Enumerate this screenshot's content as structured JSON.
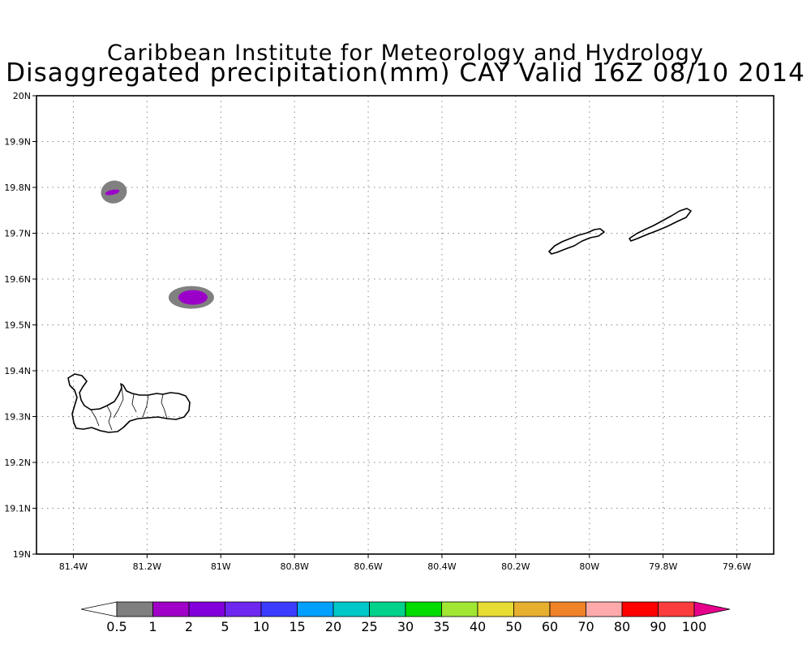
{
  "titles": {
    "line1": "Caribbean Institute for Meteorology and Hydrology",
    "line2": "Disaggregated precipitation(mm) CAY Valid 16Z 08/10 2014"
  },
  "map": {
    "lon_range": [
      -81.5,
      -79.5
    ],
    "lat_range": [
      19.0,
      20.0
    ],
    "grid": "dotted",
    "lon_ticks": [
      {
        "value": -81.4,
        "label": "81.4W"
      },
      {
        "value": -81.2,
        "label": "81.2W"
      },
      {
        "value": -81.0,
        "label": "81W"
      },
      {
        "value": -80.8,
        "label": "80.8W"
      },
      {
        "value": -80.6,
        "label": "80.6W"
      },
      {
        "value": -80.4,
        "label": "80.4W"
      },
      {
        "value": -80.2,
        "label": "80.2W"
      },
      {
        "value": -80.0,
        "label": "80W"
      },
      {
        "value": -79.8,
        "label": "79.8W"
      },
      {
        "value": -79.6,
        "label": "79.6W"
      }
    ],
    "lat_ticks": [
      {
        "value": 19.0,
        "label": "19N"
      },
      {
        "value": 19.1,
        "label": "19.1N"
      },
      {
        "value": 19.2,
        "label": "19.2N"
      },
      {
        "value": 19.3,
        "label": "19.3N"
      },
      {
        "value": 19.4,
        "label": "19.4N"
      },
      {
        "value": 19.5,
        "label": "19.5N"
      },
      {
        "value": 19.6,
        "label": "19.6N"
      },
      {
        "value": 19.7,
        "label": "19.7N"
      },
      {
        "value": 19.8,
        "label": "19.8N"
      },
      {
        "value": 19.9,
        "label": "19.9N"
      },
      {
        "value": 20.0,
        "label": "20N"
      }
    ],
    "precip_cells": [
      {
        "lon": -81.29,
        "lat": 19.79,
        "outer_mm": 0.5,
        "inner_mm": 1,
        "outer_color": "#808080",
        "inner_color": "#9b00c8"
      },
      {
        "lon": -81.08,
        "lat": 19.56,
        "outer_mm": 0.5,
        "inner_mm": 1,
        "outer_color": "#808080",
        "inner_color": "#9b00c8"
      }
    ],
    "islands": [
      "Grand Cayman",
      "Little Cayman",
      "Cayman Brac"
    ]
  },
  "colorbar": {
    "labels": [
      "0.5",
      "1",
      "2",
      "5",
      "10",
      "15",
      "20",
      "25",
      "30",
      "35",
      "40",
      "50",
      "60",
      "70",
      "80",
      "90",
      "100"
    ],
    "colors": [
      "#ffffff",
      "#7f7f7f",
      "#a000c8",
      "#8200dc",
      "#6e28f0",
      "#3c3cff",
      "#00a0ff",
      "#00c8c8",
      "#00d28c",
      "#00dc00",
      "#a0e632",
      "#e6dc32",
      "#e6af2d",
      "#f08228",
      "#ffaaaa",
      "#ff0000",
      "#fa3c3c",
      "#e6008c"
    ]
  }
}
